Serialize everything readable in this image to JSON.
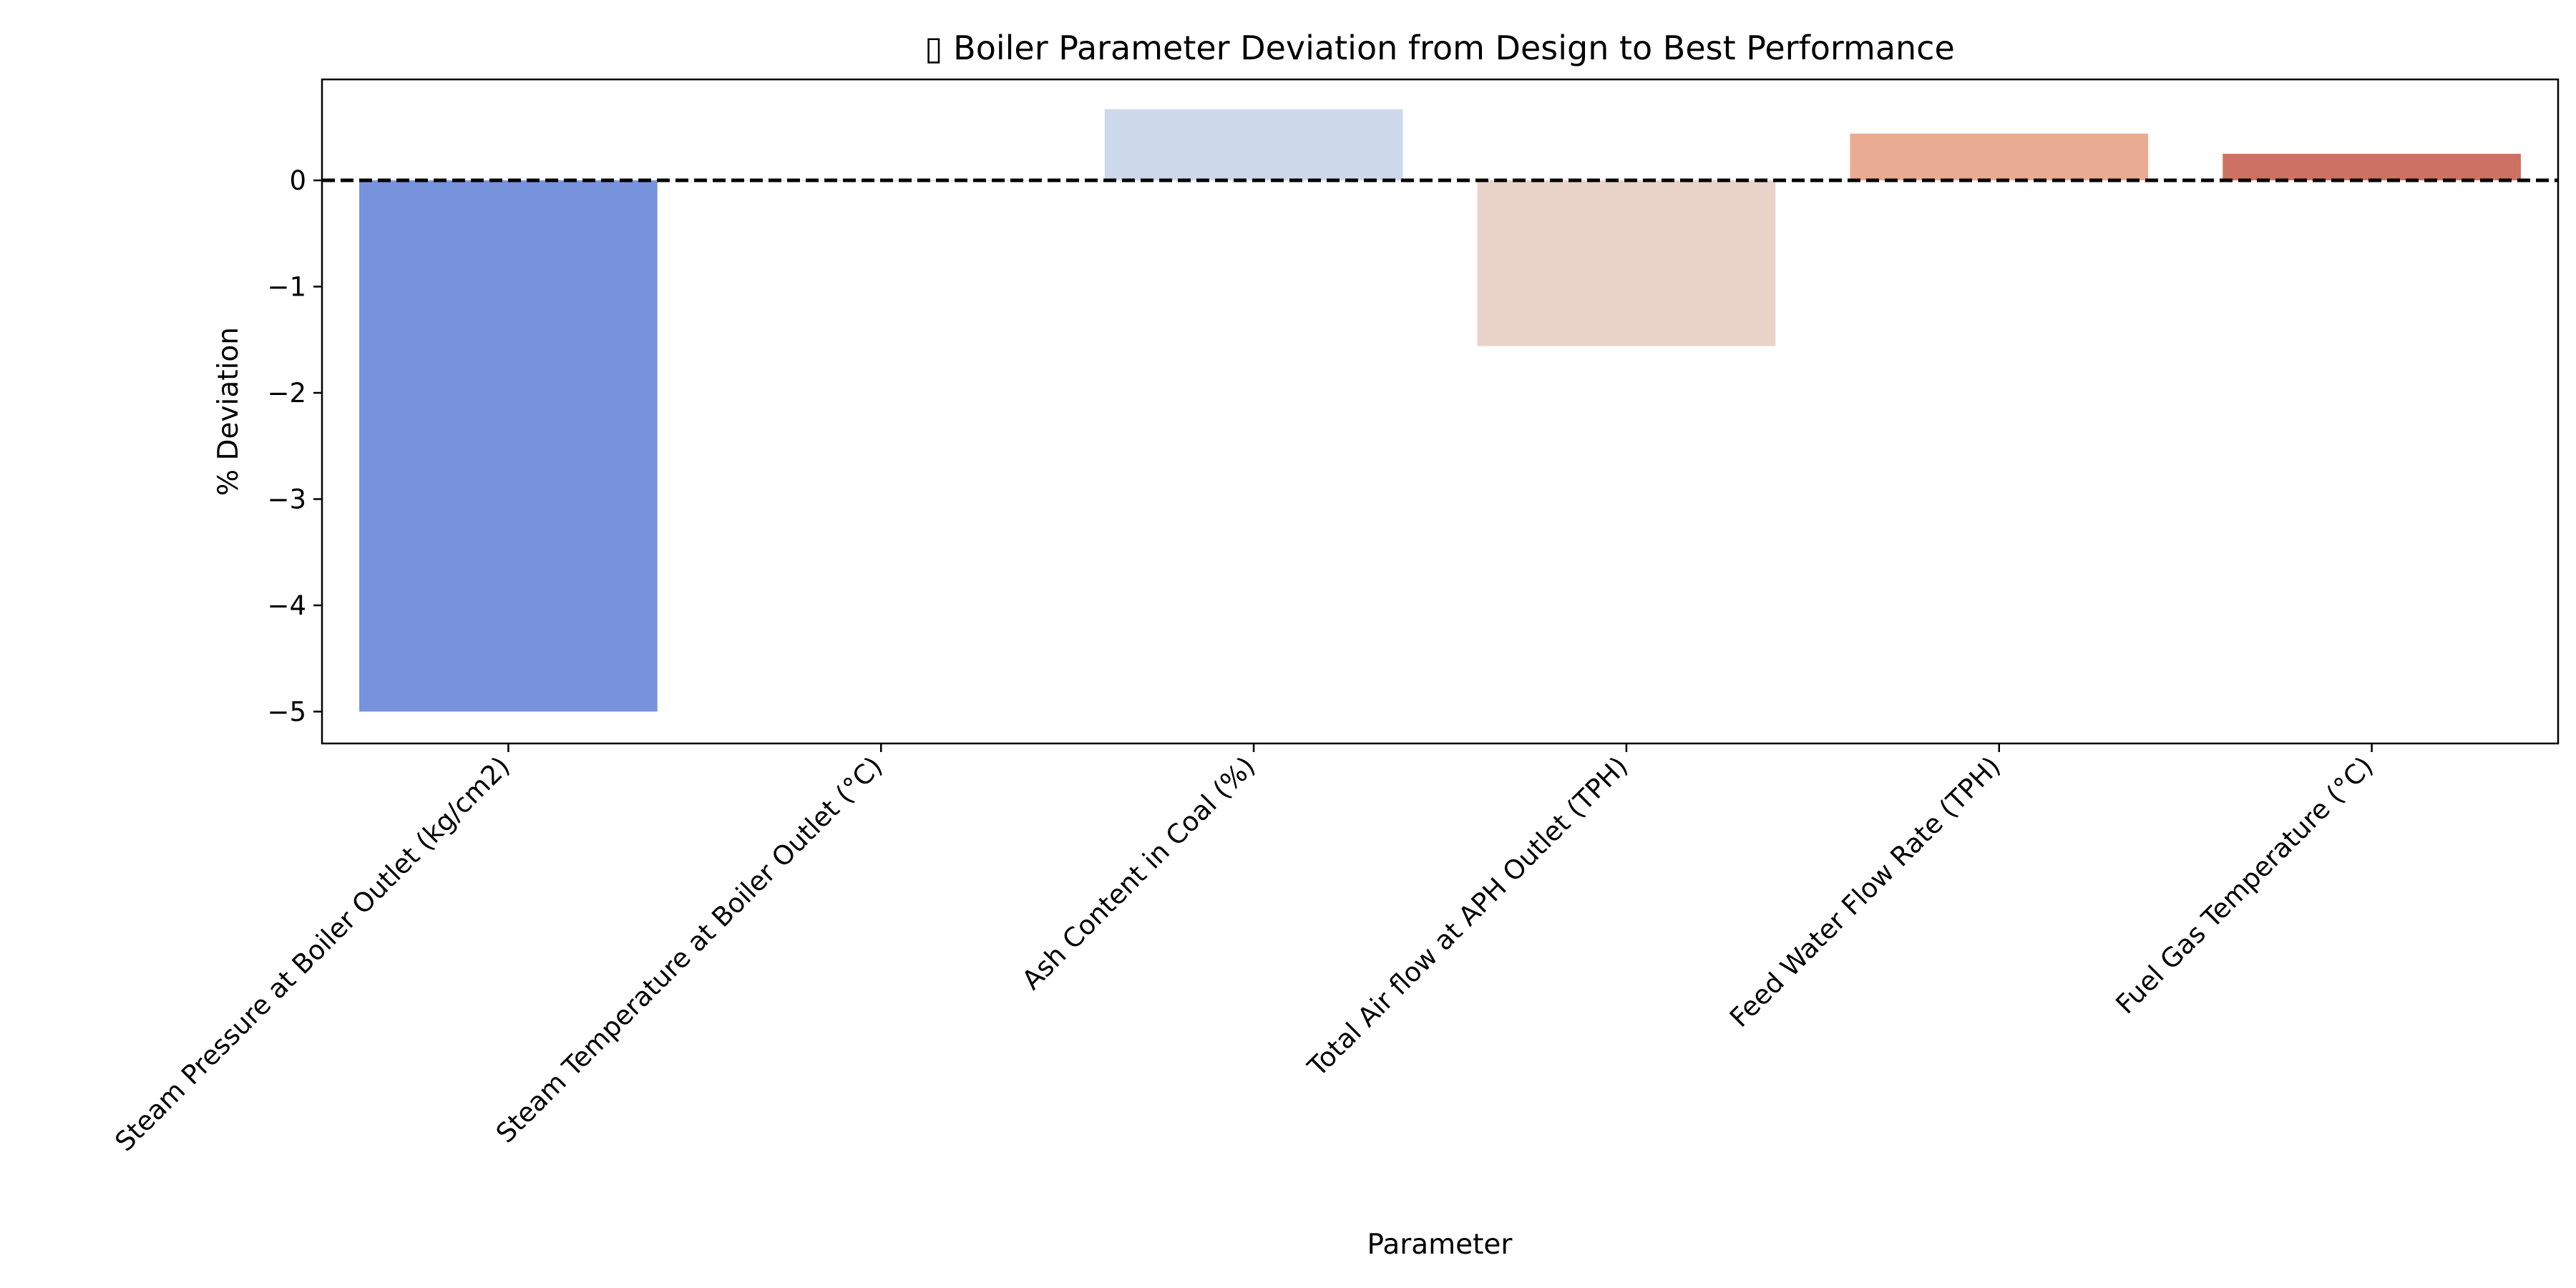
{
  "chart_data": {
    "type": "bar",
    "title": "▯ Boiler Parameter Deviation from Design to Best Performance",
    "xlabel": "Parameter",
    "ylabel": "% Deviation",
    "categories": [
      "Steam Pressure at Boiler Outlet (kg/cm2)",
      "Steam Temperature at Boiler Outlet (°C)",
      "Ash Content in Coal (%)",
      "Total Air flow at APH Outlet (TPH)",
      "Feed Water Flow Rate (TPH)",
      "Fuel Gas Temperature (°C)"
    ],
    "values": [
      -5.0,
      0.0,
      0.67,
      -1.56,
      0.44,
      0.25
    ],
    "colors": [
      "#7893de",
      "#a8bff5",
      "#cdd9eb",
      "#e9d3c8",
      "#e9ac92",
      "#cd7162"
    ],
    "ylim": [
      -5.3,
      0.95
    ],
    "yticks": [
      0,
      -1,
      -2,
      -3,
      -4,
      -5
    ],
    "ytick_labels": [
      "0",
      "−1",
      "−2",
      "−3",
      "−4",
      "−5"
    ],
    "reference_line": 0,
    "reference_line_style": "dashed black",
    "grid": false,
    "legend": "none"
  }
}
